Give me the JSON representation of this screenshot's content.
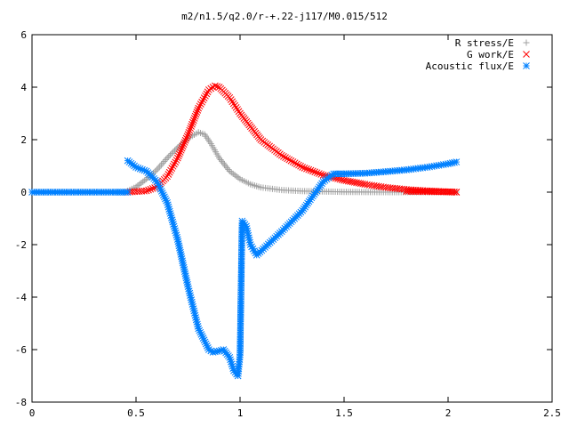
{
  "chart_data": {
    "type": "scatter",
    "title": "m2/n1.5/q2.0/r-+.22-j117/M0.015/512",
    "xlabel": "",
    "ylabel": "",
    "xlim": [
      0,
      2.5
    ],
    "ylim": [
      -8,
      6
    ],
    "x_ticks": [
      0,
      0.5,
      1,
      1.5,
      2,
      2.5
    ],
    "x_tick_labels": [
      "0",
      "0.5",
      "1",
      "1.5",
      "2",
      "2.5"
    ],
    "y_ticks": [
      -8,
      -6,
      -4,
      -2,
      0,
      2,
      4,
      6
    ],
    "y_tick_labels": [
      "-8",
      "-6",
      "-4",
      "-2",
      "0",
      "2",
      "4",
      "6"
    ],
    "grid": false,
    "legend_position": "top-right",
    "series": [
      {
        "name": "R stress/E",
        "color": "#a0a0a0",
        "marker": "plus",
        "x": [
          0.46,
          0.5,
          0.55,
          0.6,
          0.65,
          0.7,
          0.75,
          0.8,
          0.83,
          0.86,
          0.9,
          0.95,
          1.0,
          1.05,
          1.1,
          1.2,
          1.3,
          1.5,
          1.7,
          2.04
        ],
        "y": [
          0.05,
          0.2,
          0.5,
          0.85,
          1.3,
          1.7,
          2.05,
          2.28,
          2.2,
          1.85,
          1.3,
          0.8,
          0.5,
          0.3,
          0.18,
          0.08,
          0.04,
          0.01,
          0.0,
          0.0
        ]
      },
      {
        "name": "G work/E",
        "color": "#ff0000",
        "marker": "cross",
        "x": [
          0.46,
          0.55,
          0.6,
          0.65,
          0.7,
          0.75,
          0.8,
          0.85,
          0.88,
          0.9,
          0.95,
          1.0,
          1.05,
          1.1,
          1.2,
          1.3,
          1.4,
          1.5,
          1.6,
          1.7,
          1.8,
          1.9,
          2.04
        ],
        "y": [
          0.0,
          0.05,
          0.2,
          0.6,
          1.3,
          2.2,
          3.2,
          3.9,
          4.05,
          4.0,
          3.6,
          3.0,
          2.5,
          2.0,
          1.4,
          0.95,
          0.65,
          0.45,
          0.3,
          0.18,
          0.1,
          0.05,
          0.0
        ]
      },
      {
        "name": "Acoustic flux/E",
        "color": "#0080ff",
        "marker": "star",
        "x": [
          0.46,
          0.5,
          0.55,
          0.6,
          0.65,
          0.7,
          0.75,
          0.8,
          0.85,
          0.87,
          0.9,
          0.92,
          0.95,
          0.97,
          0.99,
          1.0,
          1.01,
          1.03,
          1.05,
          1.08,
          1.12,
          1.2,
          1.3,
          1.4,
          1.45,
          1.5,
          1.6,
          1.7,
          1.8,
          1.9,
          2.0,
          2.04
        ],
        "y": [
          1.2,
          0.95,
          0.8,
          0.4,
          -0.4,
          -1.8,
          -3.6,
          -5.2,
          -6.0,
          -6.1,
          -6.05,
          -6.0,
          -6.3,
          -6.8,
          -7.0,
          -6.2,
          -1.1,
          -1.3,
          -2.0,
          -2.4,
          -2.1,
          -1.5,
          -0.7,
          0.4,
          0.7,
          0.7,
          0.72,
          0.78,
          0.85,
          0.95,
          1.08,
          1.15
        ]
      },
      {
        "name": "",
        "color": "#0080ff",
        "marker": "star",
        "x": [
          0.0,
          0.1,
          0.2,
          0.3,
          0.4,
          0.46
        ],
        "y": [
          0,
          0,
          0,
          0,
          0,
          0
        ]
      },
      {
        "name": "",
        "color": "#ff0000",
        "marker": "cross",
        "x": [
          1.8,
          1.9,
          2.0,
          2.04
        ],
        "y": [
          0.03,
          0.02,
          0.01,
          0.0
        ]
      }
    ]
  }
}
